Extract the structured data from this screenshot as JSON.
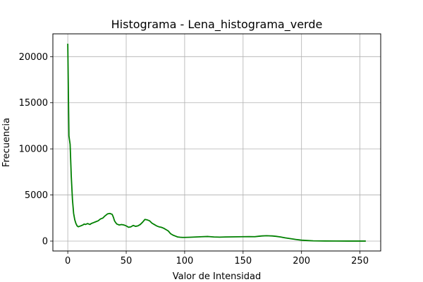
{
  "chart_data": {
    "type": "line",
    "title": "Histograma - Lena_histograma_verde",
    "xlabel": "Valor de Intensidad",
    "ylabel": "Frecuencia",
    "xlim": [
      -12.75,
      267.75
    ],
    "ylim": [
      -1070,
      22470
    ],
    "xticks": [
      0,
      50,
      100,
      150,
      200,
      250
    ],
    "yticks": [
      0,
      5000,
      10000,
      15000,
      20000
    ],
    "grid": true,
    "series": [
      {
        "color": "#008000",
        "x": [
          0,
          1,
          2,
          3,
          4,
          5,
          6,
          7,
          8,
          9,
          10,
          11,
          12,
          13,
          14,
          15,
          16,
          17,
          18,
          19,
          20,
          22,
          24,
          26,
          28,
          30,
          32,
          34,
          36,
          38,
          39,
          40,
          41,
          42,
          43,
          44,
          46,
          48,
          50,
          52,
          54,
          56,
          58,
          60,
          62,
          64,
          66,
          68,
          70,
          72,
          74,
          76,
          78,
          80,
          82,
          84,
          86,
          88,
          90,
          92,
          94,
          96,
          98,
          100,
          105,
          110,
          115,
          120,
          125,
          130,
          135,
          140,
          145,
          150,
          155,
          160,
          163,
          166,
          170,
          175,
          178,
          182,
          186,
          190,
          195,
          200,
          205,
          210,
          220,
          230,
          240,
          255
        ],
        "y": [
          21400,
          11400,
          10500,
          7000,
          4500,
          3000,
          2300,
          1900,
          1650,
          1550,
          1600,
          1650,
          1700,
          1750,
          1850,
          1800,
          1850,
          1900,
          1850,
          1800,
          1900,
          2000,
          2100,
          2200,
          2400,
          2500,
          2750,
          2950,
          3000,
          2900,
          2600,
          2200,
          2000,
          1850,
          1800,
          1750,
          1800,
          1750,
          1650,
          1500,
          1550,
          1700,
          1600,
          1650,
          1800,
          2050,
          2350,
          2300,
          2200,
          1950,
          1800,
          1650,
          1550,
          1500,
          1400,
          1250,
          1100,
          800,
          650,
          550,
          450,
          420,
          400,
          400,
          420,
          450,
          480,
          500,
          450,
          430,
          450,
          460,
          470,
          480,
          490,
          480,
          520,
          560,
          580,
          560,
          520,
          450,
          350,
          280,
          180,
          100,
          60,
          30,
          15,
          8,
          5,
          3
        ]
      }
    ]
  }
}
